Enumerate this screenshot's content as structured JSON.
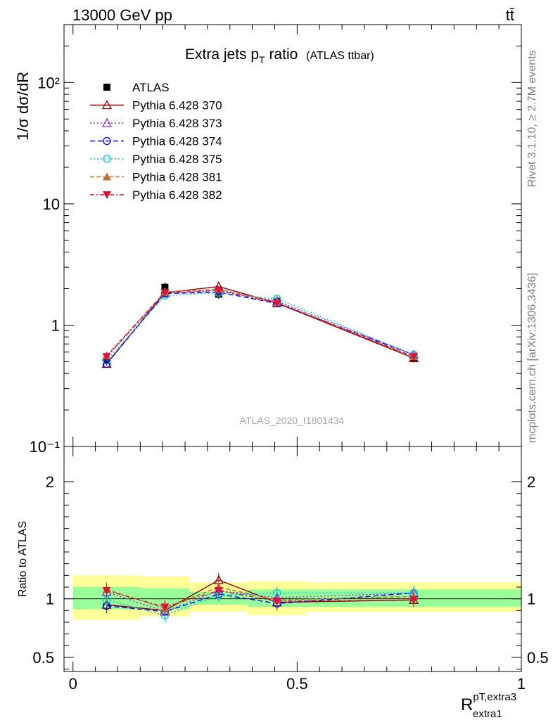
{
  "header": {
    "left": "13000 GeV pp",
    "right": "tt̄",
    "title_main": "Extra jets p",
    "title_sub": "T",
    "title_rest": " ratio",
    "title_small": "(ATLAS ttbar)"
  },
  "side_labels": {
    "rivet": "Rivet 3.1.10, ≥ 2.7M events",
    "mcplots": "mcplots.cern.ch [arXiv:1306.3436]"
  },
  "watermark": "ATLAS_2020_I1801434",
  "ratio_ylabel": "Ratio to ATLAS",
  "xlabel": {
    "main": "R",
    "sup": "pT,extra3",
    "sub": "extra1"
  },
  "ylabel_text": "1/σ dσ/dR",
  "colors": {
    "ATLAS": "#000000",
    "p370": "#8b0000",
    "p373": "#8a2be2",
    "p374": "#0000ff",
    "p375": "#00ced1",
    "p381": "#b87333",
    "p382": "#dc143c",
    "band_inner": "#99ff99",
    "band_outer": "#ffff99"
  },
  "chart_data": [
    {
      "type": "line",
      "yscale": "log",
      "ylim": [
        0.1,
        300
      ],
      "xlim": [
        -0.02,
        1.0
      ],
      "yticks": [
        "10⁻¹",
        "1",
        "10",
        "10²"
      ],
      "x": [
        0.075,
        0.205,
        0.325,
        0.455,
        0.76
      ],
      "series": [
        {
          "name": "ATLAS",
          "values": [
            0.51,
            2.05,
            1.8,
            1.57,
            0.54
          ],
          "marker": "square"
        },
        {
          "name": "Pythia 6.428 370",
          "values": [
            0.48,
            1.85,
            2.08,
            1.52,
            0.535
          ],
          "marker": "triangle-open"
        },
        {
          "name": "Pythia 6.428 373",
          "values": [
            0.55,
            1.82,
            1.93,
            1.58,
            0.57
          ],
          "marker": "triangle-open"
        },
        {
          "name": "Pythia 6.428 374",
          "values": [
            0.48,
            1.82,
            1.87,
            1.51,
            0.57
          ],
          "marker": "circle-open"
        },
        {
          "name": "Pythia 6.428 375",
          "values": [
            0.51,
            1.75,
            1.85,
            1.65,
            0.57
          ],
          "marker": "circle-open"
        },
        {
          "name": "Pythia 6.428 381",
          "values": [
            0.56,
            1.88,
            1.98,
            1.55,
            0.55
          ],
          "marker": "triangle"
        },
        {
          "name": "Pythia 6.428 382",
          "values": [
            0.55,
            1.85,
            1.93,
            1.52,
            0.55
          ],
          "marker": "triangle-down"
        }
      ]
    },
    {
      "type": "line",
      "ylim": [
        0.38,
        2.3
      ],
      "xlim": [
        -0.02,
        1.0
      ],
      "xticks": [
        "0",
        "0.5",
        "1"
      ],
      "yticks": [
        "0.5",
        "1",
        "2"
      ],
      "x": [
        0.075,
        0.205,
        0.325,
        0.455,
        0.76
      ],
      "bins": [
        [
          0.0,
          0.15
        ],
        [
          0.15,
          0.26
        ],
        [
          0.26,
          0.39
        ],
        [
          0.39,
          0.52
        ],
        [
          0.52,
          1.0
        ]
      ],
      "band_inner": [
        [
          0.91,
          1.1
        ],
        [
          0.91,
          1.09
        ],
        [
          0.95,
          1.06
        ],
        [
          0.93,
          1.08
        ],
        [
          0.93,
          1.08
        ]
      ],
      "band_outer": [
        [
          0.82,
          1.2
        ],
        [
          0.85,
          1.19
        ],
        [
          0.89,
          1.14
        ],
        [
          0.86,
          1.15
        ],
        [
          0.89,
          1.14
        ]
      ],
      "series": [
        {
          "name": "Pythia 6.428 370",
          "values": [
            0.95,
            0.9,
            1.16,
            0.97,
            0.99
          ]
        },
        {
          "name": "Pythia 6.428 373",
          "values": [
            1.06,
            0.89,
            1.07,
            1.01,
            1.05
          ]
        },
        {
          "name": "Pythia 6.428 374",
          "values": [
            0.94,
            0.89,
            1.04,
            0.96,
            1.05
          ]
        },
        {
          "name": "Pythia 6.428 375",
          "values": [
            0.99,
            0.86,
            1.03,
            1.05,
            1.05
          ]
        },
        {
          "name": "Pythia 6.428 381",
          "values": [
            1.08,
            0.92,
            1.1,
            0.99,
            1.02
          ]
        },
        {
          "name": "Pythia 6.428 382",
          "values": [
            1.07,
            0.93,
            1.07,
            0.98,
            0.99
          ]
        }
      ]
    }
  ]
}
